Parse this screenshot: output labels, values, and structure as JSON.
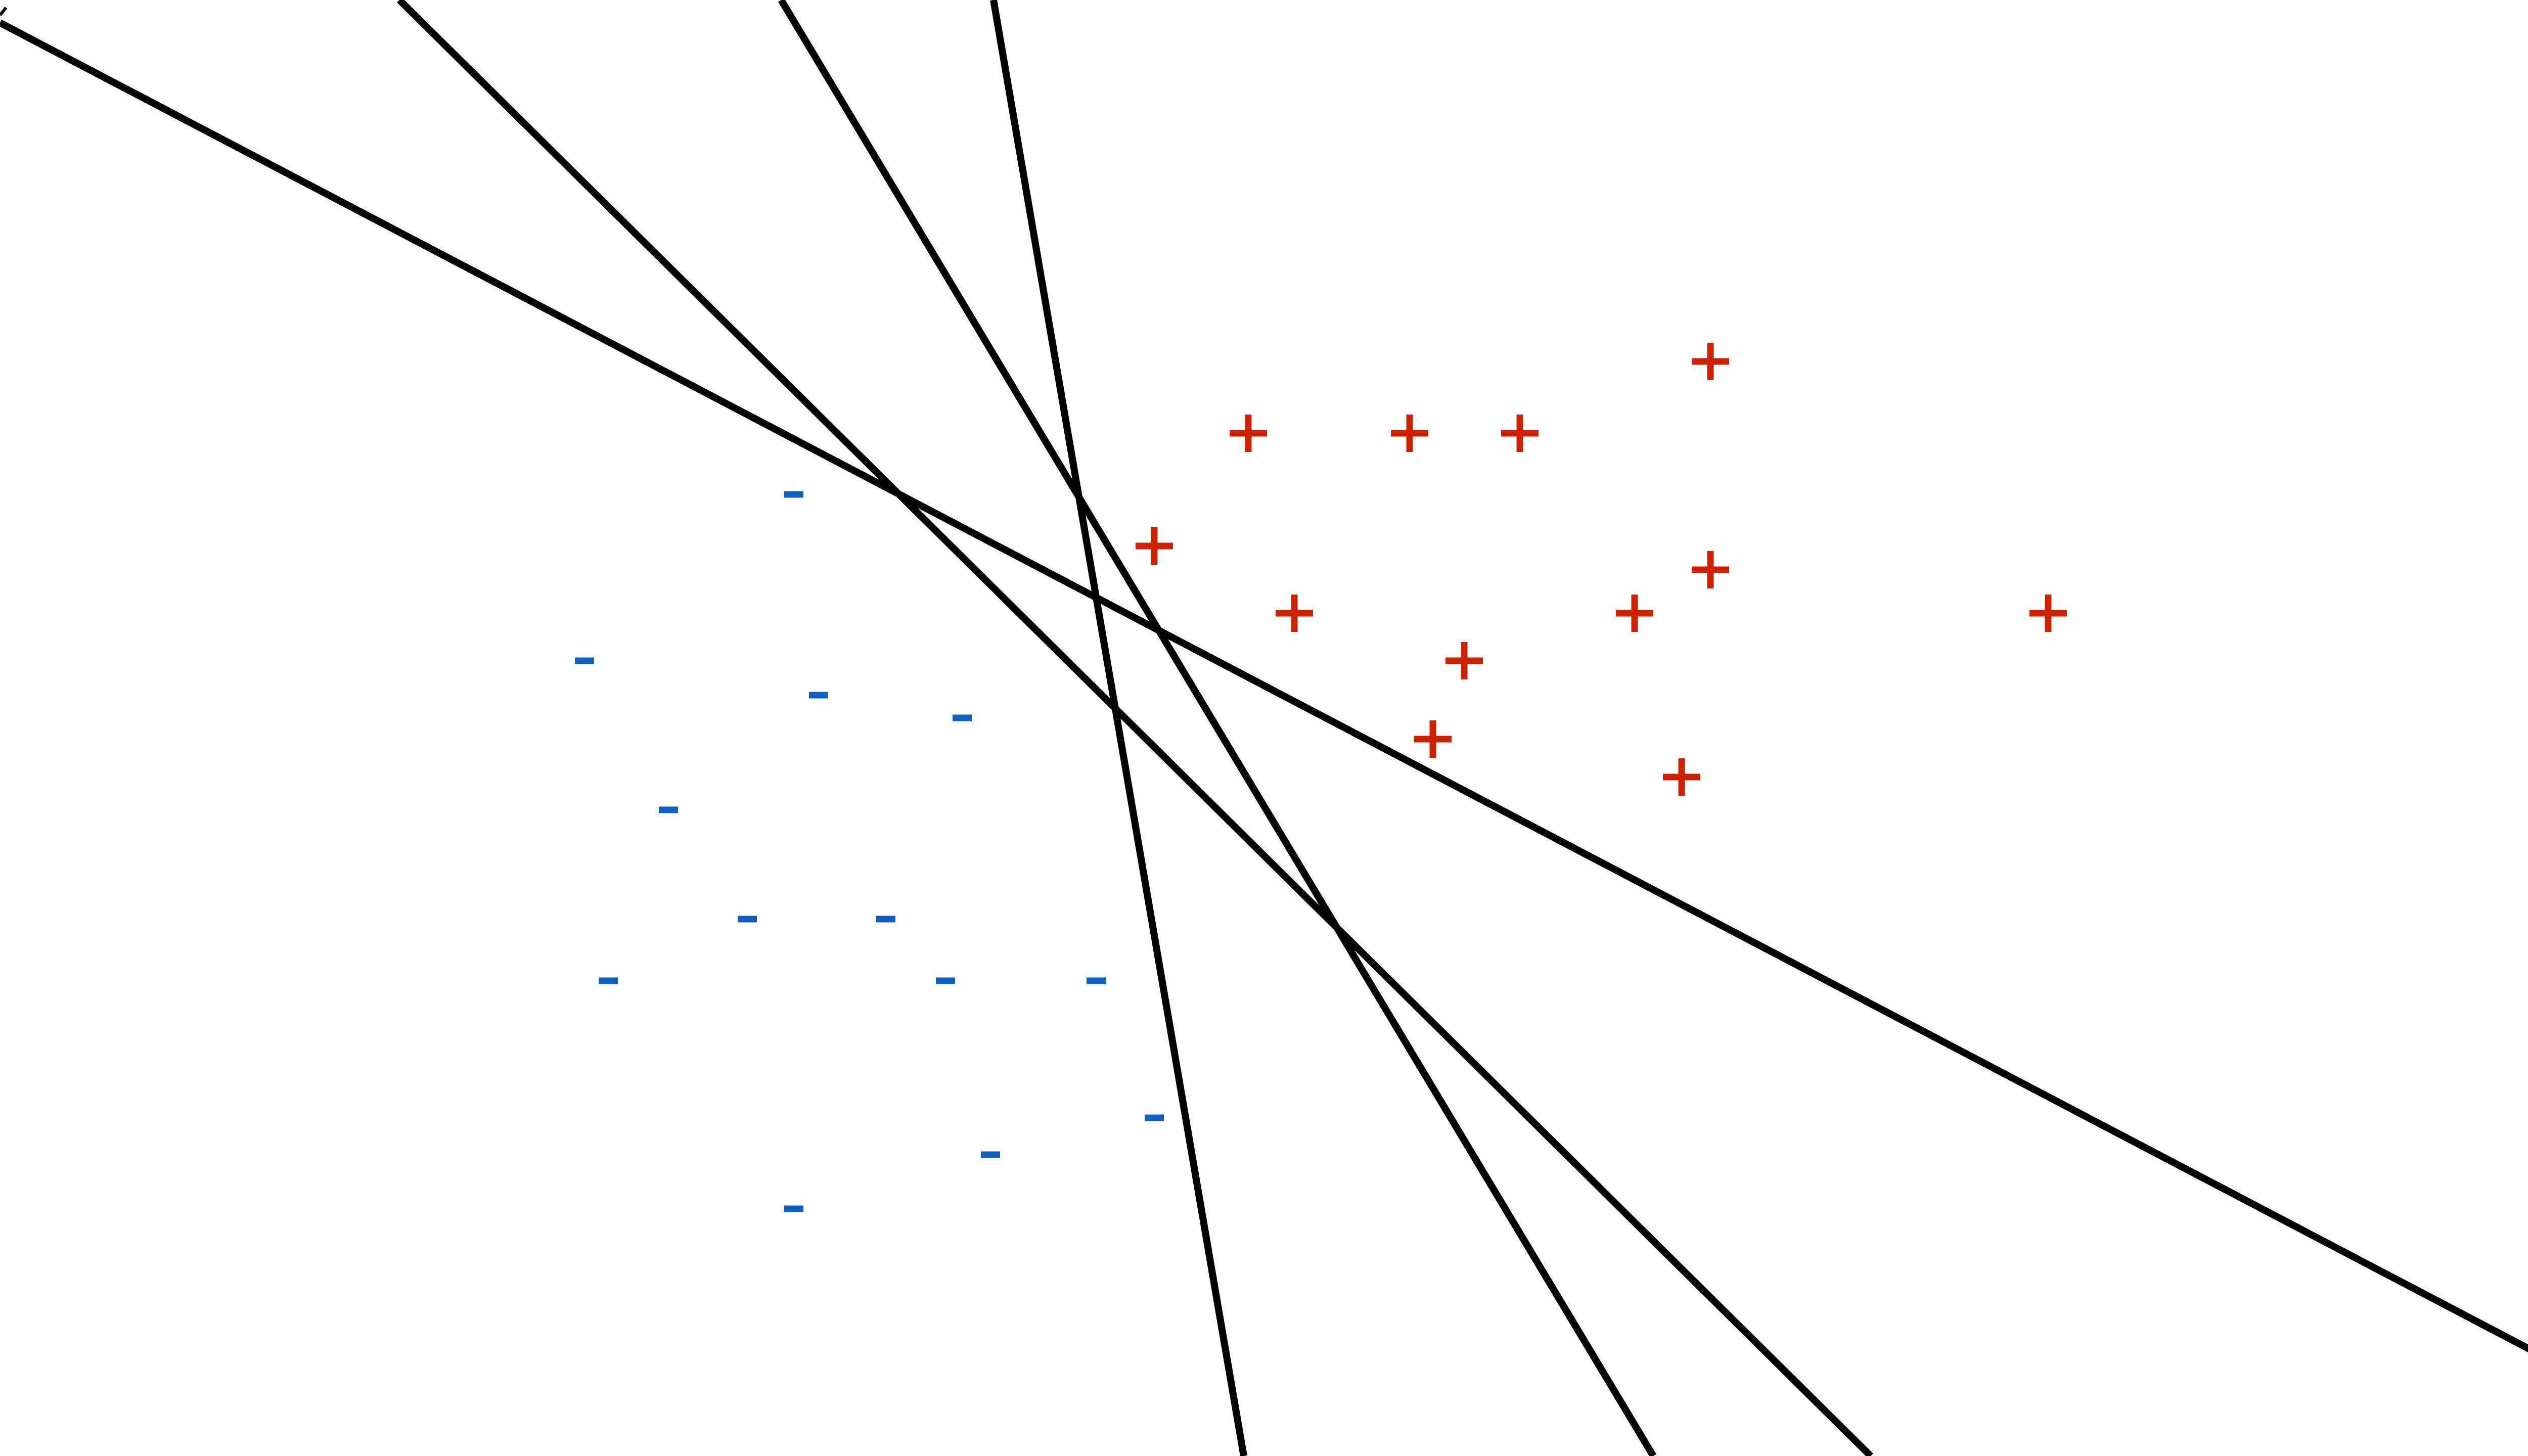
{
  "figure": {
    "colors": {
      "positive": "#cc2200",
      "negative": "#1060c0",
      "line": "#000000",
      "background": "#ffffff"
    },
    "positive_symbol": "+",
    "negative_symbol": "-"
  }
}
